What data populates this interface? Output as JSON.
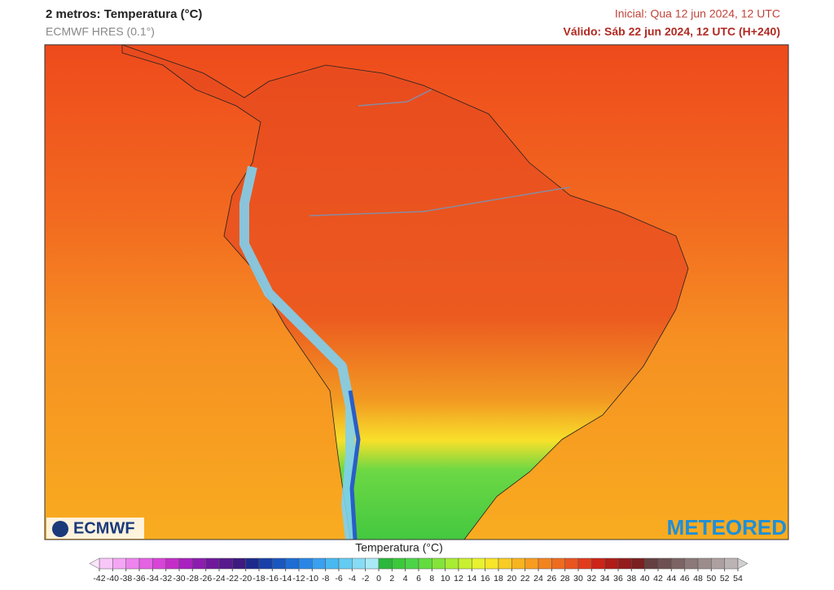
{
  "header": {
    "title": "2 metros: Temperatura (°C)",
    "subtitle": "ECMWF HRES (0.1°)",
    "initial": "Inicial: Qua 12 jun 2024, 12 UTC",
    "valid": "Válido: Sáb 22 jun 2024, 12 UTC (H+240)"
  },
  "logos": {
    "left": "ECMWF",
    "right": "METEORED"
  },
  "colorbar": {
    "title": "Temperatura (°C)",
    "ticks": [
      -42,
      -40,
      -38,
      -36,
      -34,
      -32,
      -30,
      -28,
      -26,
      -24,
      -22,
      -20,
      -18,
      -16,
      -14,
      -12,
      -10,
      -8,
      -6,
      -4,
      -2,
      0,
      2,
      4,
      6,
      8,
      10,
      12,
      14,
      16,
      18,
      20,
      22,
      24,
      26,
      28,
      30,
      32,
      34,
      36,
      38,
      40,
      42,
      44,
      46,
      48,
      50,
      52,
      54
    ],
    "colors": [
      "#f9c6f9",
      "#f4a6f4",
      "#ee84ee",
      "#e462e4",
      "#d844d8",
      "#c42ec8",
      "#a822c0",
      "#8c1cb0",
      "#70189c",
      "#561a8c",
      "#3c1a80",
      "#1c2a8c",
      "#1840a8",
      "#1a56c0",
      "#1e6cd4",
      "#2a86e6",
      "#3aa0f0",
      "#4ab8f0",
      "#64ccf2",
      "#86dcf4",
      "#aaeaf6",
      "#2cb83c",
      "#3cc83c",
      "#4cd448",
      "#64dc40",
      "#84e43a",
      "#a8ec34",
      "#c8f030",
      "#e8f230",
      "#f8e428",
      "#f8cc24",
      "#f8b420",
      "#f89c20",
      "#f28420",
      "#ee6c20",
      "#ea5420",
      "#e23c1e",
      "#cc2418",
      "#b01c18",
      "#941c1c",
      "#7a2020",
      "#644040",
      "#6e5050",
      "#7c6464",
      "#8c7878",
      "#9c8c8c",
      "#aca0a0",
      "#bcb4b4"
    ],
    "low_color": "#fde4fd",
    "high_color": "#d0d0d0"
  }
}
